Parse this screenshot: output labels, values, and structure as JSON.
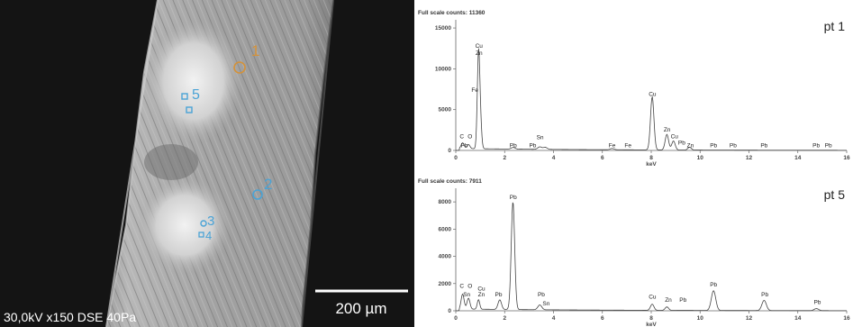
{
  "sem": {
    "caption": "30,0kV x150 DSE 40Pa",
    "scale_bar": "200 µm",
    "markers": [
      {
        "label": "1",
        "color": "#d4923a"
      },
      {
        "label": "5",
        "color": "#4aa3d6"
      },
      {
        "label": "2",
        "color": "#4aa3d6"
      },
      {
        "label": "3",
        "color": "#4aa3d6"
      },
      {
        "label": "4",
        "color": "#4aa3d6"
      }
    ]
  },
  "chart_data": [
    {
      "type": "line",
      "title": "Full scale counts: 11360",
      "panel_label": "pt 1",
      "xlabel": "keV",
      "ylabel": "",
      "xlim": [
        0,
        16
      ],
      "ylim": [
        0,
        16000
      ],
      "xticks": [
        0,
        2,
        4,
        6,
        8,
        10,
        12,
        14,
        16
      ],
      "yticks": [
        0,
        5000,
        10000,
        15000
      ],
      "peaks": [
        {
          "x": 0.28,
          "y": 700,
          "w": 0.06
        },
        {
          "x": 0.52,
          "y": 500,
          "w": 0.06
        },
        {
          "x": 0.93,
          "y": 11360,
          "w": 0.05
        },
        {
          "x": 1.01,
          "y": 3000,
          "w": 0.05
        },
        {
          "x": 2.35,
          "y": 200,
          "w": 0.08
        },
        {
          "x": 3.44,
          "y": 300,
          "w": 0.08
        },
        {
          "x": 3.66,
          "y": 250,
          "w": 0.08
        },
        {
          "x": 6.4,
          "y": 150,
          "w": 0.08
        },
        {
          "x": 8.04,
          "y": 6500,
          "w": 0.07
        },
        {
          "x": 8.64,
          "y": 1900,
          "w": 0.07
        },
        {
          "x": 8.91,
          "y": 1100,
          "w": 0.07
        },
        {
          "x": 9.57,
          "y": 350,
          "w": 0.07
        }
      ],
      "labels": [
        {
          "text": "C",
          "x": 0.25,
          "y": 1500
        },
        {
          "text": "O",
          "x": 0.58,
          "y": 1500
        },
        {
          "text": "Pb",
          "x": 0.35,
          "y": 400
        },
        {
          "text": "Cu",
          "x": 0.95,
          "y": 12600
        },
        {
          "text": "Zn",
          "x": 0.95,
          "y": 11700
        },
        {
          "text": "Fe",
          "x": 0.78,
          "y": 7200
        },
        {
          "text": "Pb",
          "x": 2.35,
          "y": 400
        },
        {
          "text": "Sn",
          "x": 3.45,
          "y": 1400
        },
        {
          "text": "Pb",
          "x": 3.15,
          "y": 400
        },
        {
          "text": "Fe",
          "x": 6.4,
          "y": 400
        },
        {
          "text": "Fe",
          "x": 7.05,
          "y": 400
        },
        {
          "text": "Cu",
          "x": 8.05,
          "y": 6700
        },
        {
          "text": "Zn",
          "x": 8.65,
          "y": 2300
        },
        {
          "text": "Cu",
          "x": 8.95,
          "y": 1500
        },
        {
          "text": "Pb",
          "x": 9.25,
          "y": 700
        },
        {
          "text": "Zn",
          "x": 9.6,
          "y": 400
        },
        {
          "text": "Pb",
          "x": 10.55,
          "y": 400
        },
        {
          "text": "Pb",
          "x": 11.35,
          "y": 400
        },
        {
          "text": "Pb",
          "x": 12.62,
          "y": 400
        },
        {
          "text": "Pb",
          "x": 14.75,
          "y": 400
        },
        {
          "text": "Pb",
          "x": 15.25,
          "y": 400
        }
      ]
    },
    {
      "type": "line",
      "title": "Full scale counts: 7911",
      "panel_label": "pt 5",
      "xlabel": "keV",
      "ylabel": "",
      "xlim": [
        0,
        16
      ],
      "ylim": [
        0,
        9000
      ],
      "xticks": [
        0,
        2,
        4,
        6,
        8,
        10,
        12,
        14,
        16
      ],
      "yticks": [
        0,
        2000,
        4000,
        6000,
        8000
      ],
      "peaks": [
        {
          "x": 0.28,
          "y": 1100,
          "w": 0.06
        },
        {
          "x": 0.52,
          "y": 800,
          "w": 0.06
        },
        {
          "x": 0.93,
          "y": 700,
          "w": 0.05
        },
        {
          "x": 1.8,
          "y": 700,
          "w": 0.07
        },
        {
          "x": 2.34,
          "y": 7911,
          "w": 0.07
        },
        {
          "x": 3.44,
          "y": 350,
          "w": 0.08
        },
        {
          "x": 8.04,
          "y": 450,
          "w": 0.07
        },
        {
          "x": 8.64,
          "y": 250,
          "w": 0.07
        },
        {
          "x": 10.55,
          "y": 1450,
          "w": 0.09
        },
        {
          "x": 12.62,
          "y": 750,
          "w": 0.09
        },
        {
          "x": 14.76,
          "y": 150,
          "w": 0.09
        }
      ],
      "labels": [
        {
          "text": "C",
          "x": 0.25,
          "y": 1700
        },
        {
          "text": "O",
          "x": 0.58,
          "y": 1700
        },
        {
          "text": "Sn",
          "x": 0.45,
          "y": 1050
        },
        {
          "text": "Cu",
          "x": 1.05,
          "y": 1500
        },
        {
          "text": "Zn",
          "x": 1.05,
          "y": 1050
        },
        {
          "text": "Pb",
          "x": 1.75,
          "y": 1050
        },
        {
          "text": "Pb",
          "x": 2.35,
          "y": 8200
        },
        {
          "text": "Pb",
          "x": 3.5,
          "y": 1050
        },
        {
          "text": "Sn",
          "x": 3.7,
          "y": 400
        },
        {
          "text": "Cu",
          "x": 8.05,
          "y": 900
        },
        {
          "text": "Zn",
          "x": 8.7,
          "y": 650
        },
        {
          "text": "Pb",
          "x": 9.3,
          "y": 650
        },
        {
          "text": "Pb",
          "x": 10.55,
          "y": 1800
        },
        {
          "text": "Pb",
          "x": 12.65,
          "y": 1050
        },
        {
          "text": "Pb",
          "x": 14.8,
          "y": 500
        }
      ]
    }
  ]
}
